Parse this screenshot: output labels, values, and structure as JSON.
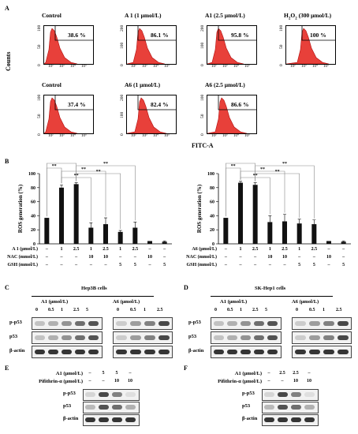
{
  "panel_labels": {
    "a": "A",
    "b": "B",
    "c": "C",
    "d": "D",
    "e": "E",
    "f": "F"
  },
  "flow": {
    "y_label": "Counts",
    "x_label": "FITC-A",
    "y_ticks_a": [
      "0",
      "50",
      "100"
    ],
    "y_ticks_b": [
      "0",
      "100",
      "200"
    ],
    "x_ticks": [
      "10²",
      "10³",
      "10⁴",
      "10⁵"
    ],
    "plots": [
      {
        "title": "Control",
        "percent": "38.6 %"
      },
      {
        "title": "A 1 (1 μmol/L)",
        "percent": "86.1 %"
      },
      {
        "title": "A1 (2.5 μmol/L)",
        "percent": "95.8 %"
      },
      {
        "title_main": "H",
        "title_sub": "2",
        "title_mid": "O",
        "title_sub2": "2",
        "title_rest": " (300 μmol/L)",
        "percent": "100 %"
      },
      {
        "title": "Control",
        "percent": "37.4 %"
      },
      {
        "title": "A6 (1 μmol/L)",
        "percent": "82.4 %"
      },
      {
        "title": "A6 (2.5 μmol/L)",
        "percent": "86.6 %"
      }
    ]
  },
  "chart_data": [
    {
      "type": "bar",
      "ylabel": "ROS generation (%)",
      "ylim": [
        0,
        100
      ],
      "yticks": [
        "0",
        "20",
        "40",
        "60",
        "80",
        "100"
      ],
      "values": [
        37,
        80,
        85,
        23,
        28,
        17,
        23,
        4,
        3
      ],
      "errors": [
        0,
        4,
        2,
        7,
        9,
        2,
        8,
        0,
        1
      ],
      "significance": "**",
      "rows": [
        {
          "label": "A 1 (μmol/L)",
          "cells": [
            "–",
            "1",
            "2.5",
            "1",
            "2.5",
            "1",
            "2.5",
            "–",
            "–"
          ]
        },
        {
          "label": "NAC (mmol/L)",
          "cells": [
            "–",
            "–",
            "–",
            "10",
            "10",
            "–",
            "–",
            "10",
            "–"
          ]
        },
        {
          "label": "GSH (mmol/L)",
          "cells": [
            "–",
            "–",
            "–",
            "–",
            "–",
            "5",
            "5",
            "–",
            "5"
          ]
        }
      ]
    },
    {
      "type": "bar",
      "ylabel": "ROS generation (%)",
      "ylim": [
        0,
        100
      ],
      "yticks": [
        "0",
        "20",
        "40",
        "60",
        "80",
        "100"
      ],
      "values": [
        37,
        87,
        84,
        31,
        32,
        29,
        28,
        4,
        3
      ],
      "errors": [
        0,
        2,
        3,
        9,
        10,
        6,
        6,
        0,
        1
      ],
      "significance": "**",
      "rows": [
        {
          "label": "A6 (μmol/L)",
          "cells": [
            "–",
            "1",
            "2.5",
            "1",
            "2.5",
            "1",
            "2.5",
            "–",
            "–"
          ]
        },
        {
          "label": "NAC (mmol/L)",
          "cells": [
            "–",
            "–",
            "–",
            "10",
            "10",
            "–",
            "–",
            "10",
            "–"
          ]
        },
        {
          "label": "GSH (mmol/L)",
          "cells": [
            "–",
            "–",
            "–",
            "–",
            "–",
            "5",
            "5",
            "–",
            "5"
          ]
        }
      ]
    }
  ],
  "blot_c": {
    "cell_line": "Hep3B cells",
    "left_treat": "A1 (μmol/L)",
    "right_treat": "A6 (μmol/L)",
    "left_doses": [
      "0",
      "0.5",
      "1",
      "2.5",
      "5"
    ],
    "right_doses": [
      "0",
      "0.5",
      "1",
      "2.5"
    ],
    "rows": [
      "p-p53",
      "p53",
      "β-actin"
    ]
  },
  "blot_d": {
    "cell_line": "SK-Hep1 cells",
    "left_treat": "A1 (μmol/L)",
    "right_treat": "A6 (μmol/L)",
    "left_doses": [
      "0",
      "0.5",
      "1",
      "2.5",
      "5"
    ],
    "right_doses": [
      "0",
      "0.5",
      "1",
      "2.5"
    ],
    "rows": [
      "p-p53",
      "p53",
      "β-actin"
    ]
  },
  "blot_e": {
    "treat1": "A1 (μmol/L)",
    "treat2": "Pifithrin-α (μmol/L)",
    "t1_vals": [
      "–",
      "5",
      "5",
      "–"
    ],
    "t2_vals": [
      "–",
      "–",
      "10",
      "10"
    ],
    "rows": [
      "p-p53",
      "p53",
      "β-actin"
    ]
  },
  "blot_f": {
    "treat1": "A1 (μmol/L)",
    "treat2": "Pifithrin-α (μmol/L)",
    "t1_vals": [
      "–",
      "2.5",
      "2.5",
      "–"
    ],
    "t2_vals": [
      "–",
      "–",
      "10",
      "10"
    ],
    "rows": [
      "p-p53",
      "p53",
      "β-actin"
    ]
  },
  "colors": {
    "hist_fill": "#e8403a",
    "hist_stroke": "#b01010",
    "bar": "#111111"
  }
}
